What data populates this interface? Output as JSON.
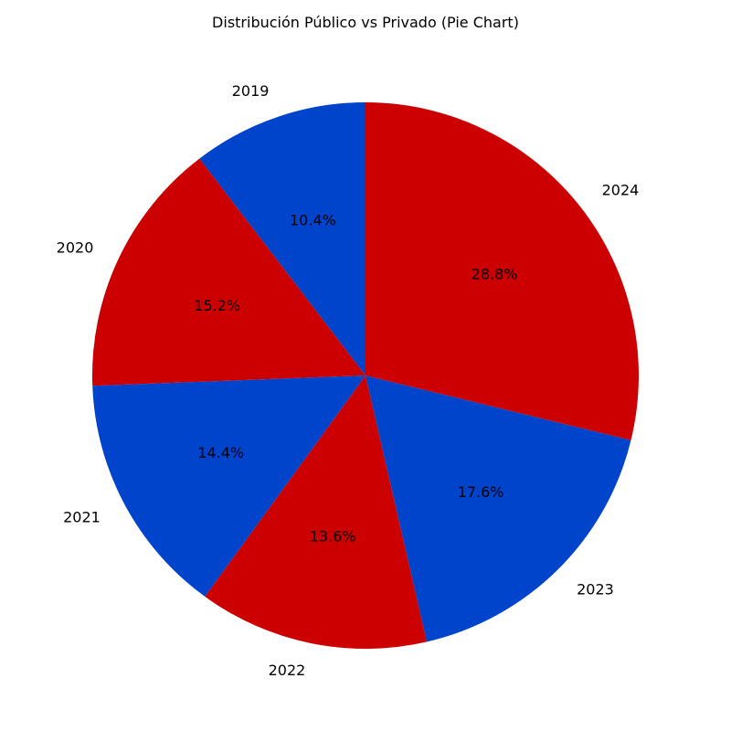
{
  "chart_data": {
    "type": "pie",
    "title": "Distribución Público vs Privado (Pie Chart)",
    "categories": [
      "2019",
      "2020",
      "2021",
      "2022",
      "2023",
      "2024"
    ],
    "values": [
      10.4,
      15.2,
      14.4,
      13.6,
      17.6,
      28.8
    ],
    "value_labels": [
      "10.4%",
      "15.2%",
      "14.4%",
      "13.6%",
      "17.6%",
      "28.8%"
    ],
    "colors": [
      "#0044cc",
      "#cc0000",
      "#0044cc",
      "#cc0000",
      "#0044cc",
      "#cc0000"
    ],
    "start_angle_deg": 90,
    "direction": "counterclockwise",
    "legend": "none"
  }
}
